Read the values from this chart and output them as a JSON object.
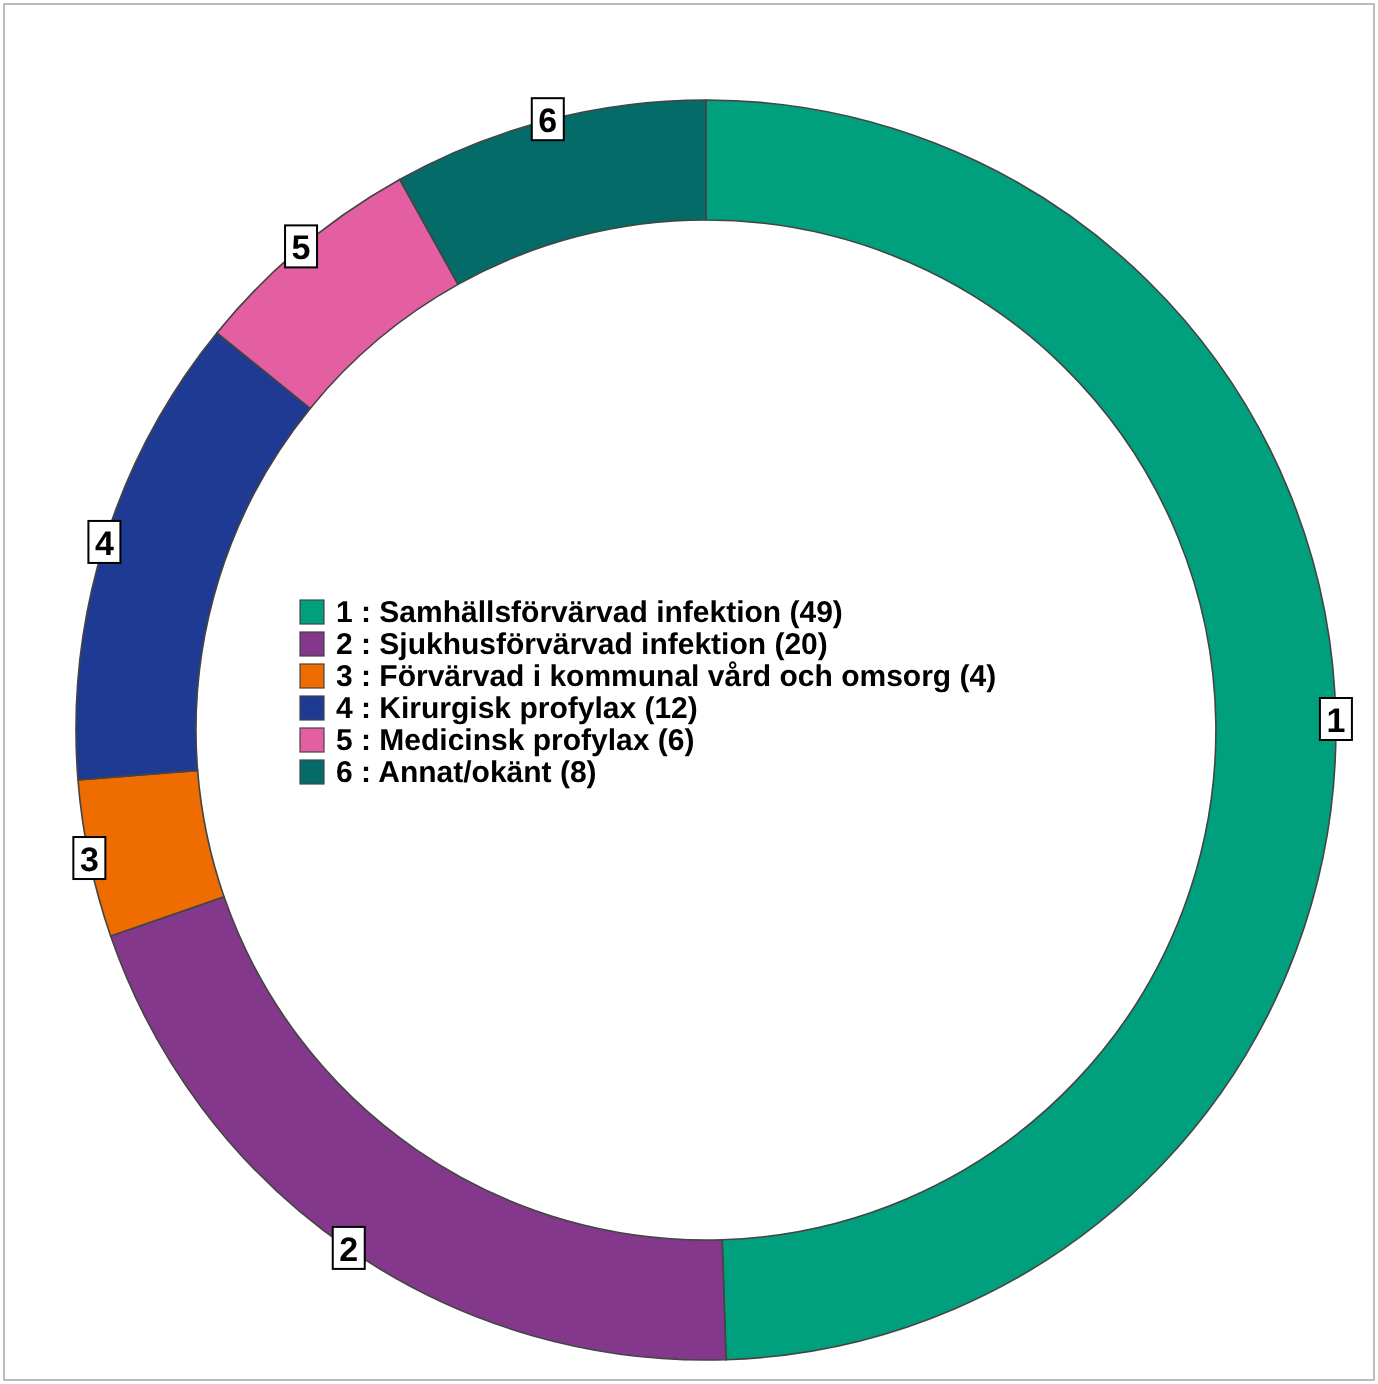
{
  "chart_data": {
    "type": "donut",
    "categories": [
      "1 : Samhällsförvärvad infektion (49)",
      "2 : Sjukhusförvärvad infektion (20)",
      "3 : Förvärvad i kommunal vård och omsorg (4)",
      "4 : Kirurgisk profylax (12)",
      "5 : Medicinsk profylax (6)",
      "6 : Annat/okänt (8)"
    ],
    "values": [
      49,
      20,
      4,
      12,
      6,
      8
    ],
    "colors": [
      "#00a07f",
      "#84388c",
      "#ef6c00",
      "#1f3a93",
      "#e35fa2",
      "#056b68"
    ],
    "annotations": [
      "1",
      "2",
      "3",
      "4",
      "5",
      "6"
    ],
    "legend": "left"
  }
}
